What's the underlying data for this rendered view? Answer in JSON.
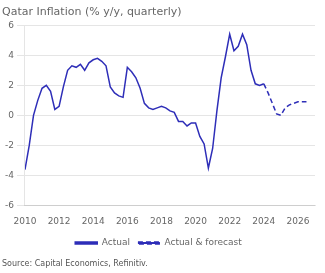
{
  "chart_data": {
    "type": "line",
    "title": "Qatar Inflation (% y/y, quarterly)",
    "annotations": [
      "Source: Capital Economics, Refinitiv."
    ],
    "xlim": [
      2010,
      2027
    ],
    "ylim": [
      -6,
      6
    ],
    "xticks": [
      2010,
      2012,
      2014,
      2016,
      2018,
      2020,
      2022,
      2024,
      2026
    ],
    "yticks": [
      -6,
      -4,
      -2,
      0,
      2,
      4,
      6
    ],
    "grid": "y",
    "legend": "bottom",
    "series": [
      {
        "name": "Actual",
        "color": "#2e2eb8",
        "line_style": "solid",
        "x": [
          2010.0,
          2010.25,
          2010.5,
          2010.75,
          2011.0,
          2011.25,
          2011.5,
          2011.75,
          2012.0,
          2012.25,
          2012.5,
          2012.75,
          2013.0,
          2013.25,
          2013.5,
          2013.75,
          2014.0,
          2014.25,
          2014.5,
          2014.75,
          2015.0,
          2015.25,
          2015.5,
          2015.75,
          2016.0,
          2016.25,
          2016.5,
          2016.75,
          2017.0,
          2017.25,
          2017.5,
          2017.75,
          2018.0,
          2018.25,
          2018.5,
          2018.75,
          2019.0,
          2019.25,
          2019.5,
          2019.75,
          2020.0,
          2020.25,
          2020.5,
          2020.75,
          2021.0,
          2021.25,
          2021.5,
          2021.75,
          2022.0,
          2022.25,
          2022.5,
          2022.75,
          2023.0,
          2023.25,
          2023.5,
          2023.75,
          2024.0
        ],
        "values": [
          -3.6,
          -2.0,
          0.0,
          1.0,
          1.8,
          2.0,
          1.6,
          0.4,
          0.6,
          1.9,
          3.0,
          3.3,
          3.2,
          3.4,
          3.0,
          3.5,
          3.7,
          3.8,
          3.6,
          3.3,
          1.9,
          1.5,
          1.3,
          1.2,
          3.2,
          2.9,
          2.5,
          1.8,
          0.8,
          0.5,
          0.4,
          0.5,
          0.6,
          0.5,
          0.3,
          0.2,
          -0.4,
          -0.4,
          -0.7,
          -0.5,
          -0.5,
          -1.4,
          -1.9,
          -3.5,
          -2.2,
          0.3,
          2.5,
          3.9,
          5.4,
          4.3,
          4.6,
          5.4,
          4.7,
          3.0,
          2.1,
          2.0,
          2.1
        ]
      },
      {
        "name": "Actual & forecast",
        "color": "#2e2eb8",
        "line_style": "dashed",
        "x": [
          2024.0,
          2024.25,
          2024.5,
          2024.75,
          2025.0,
          2025.25,
          2025.5,
          2025.75,
          2026.0,
          2026.25,
          2026.5
        ],
        "values": [
          2.1,
          1.5,
          0.8,
          0.1,
          0.0,
          0.5,
          0.7,
          0.8,
          0.9,
          0.9,
          0.9
        ]
      }
    ]
  }
}
